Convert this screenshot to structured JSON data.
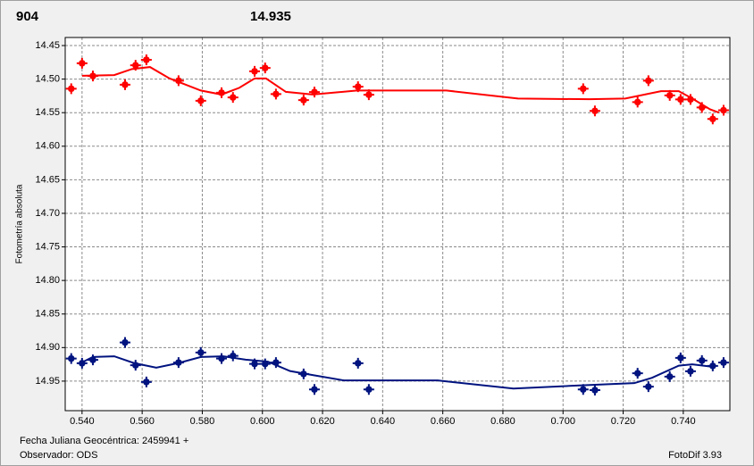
{
  "chart_data": {
    "type": "scatter",
    "y_label": "Fotometría absoluta",
    "x_label": "Fecha Juliana Geocéntrica: 2459941 +",
    "observer": "Observador: ODS",
    "software": "FotoDif 3.93",
    "xlim": [
      0.5344,
      0.7555
    ],
    "ylim": [
      14.438,
      14.994
    ],
    "y_inverted": true,
    "grid": true,
    "xticks": [
      {
        "value": 0.54,
        "label": "0.540"
      },
      {
        "value": 0.56,
        "label": "0.560"
      },
      {
        "value": 0.58,
        "label": "0.580"
      },
      {
        "value": 0.6,
        "label": "0.600"
      },
      {
        "value": 0.62,
        "label": "0.620"
      },
      {
        "value": 0.64,
        "label": "0.640"
      },
      {
        "value": 0.66,
        "label": "0.660"
      },
      {
        "value": 0.68,
        "label": "0.680"
      },
      {
        "value": 0.7,
        "label": "0.700"
      },
      {
        "value": 0.72,
        "label": "0.720"
      },
      {
        "value": 0.74,
        "label": "0.740"
      }
    ],
    "yticks": [
      14.45,
      {
        "value": 14.5,
        "label": "14.50"
      },
      14.55,
      {
        "value": 14.6,
        "label": "14.60"
      },
      14.65,
      {
        "value": 14.7,
        "label": "14.70"
      },
      14.75,
      {
        "value": 14.8,
        "label": "14.80"
      },
      14.85,
      {
        "value": 14.9,
        "label": "14.90"
      },
      14.95
    ],
    "series": [
      {
        "name": "904",
        "color": "#ff0000",
        "x": [
          0.5364,
          0.54,
          0.5436,
          0.5543,
          0.5578,
          0.5614,
          0.5721,
          0.5795,
          0.5864,
          0.5902,
          0.5974,
          0.6009,
          0.6045,
          0.6137,
          0.6173,
          0.6318,
          0.6354,
          0.7067,
          0.7106,
          0.7248,
          0.7284,
          0.7355,
          0.7391,
          0.7424,
          0.7462,
          0.7498,
          0.7534
        ],
        "values": [
          14.513,
          14.475,
          14.494,
          14.507,
          14.478,
          14.47,
          14.501,
          14.531,
          14.519,
          14.526,
          14.487,
          14.482,
          14.521,
          14.53,
          14.518,
          14.51,
          14.522,
          14.513,
          14.546,
          14.533,
          14.501,
          14.523,
          14.529,
          14.529,
          14.541,
          14.558,
          14.545
        ],
        "fit_x": [
          0.54,
          0.5507,
          0.5566,
          0.5626,
          0.5691,
          0.5795,
          0.5864,
          0.5923,
          0.5974,
          0.6012,
          0.6078,
          0.6167,
          0.6315,
          0.6612,
          0.685,
          0.7088,
          0.7207,
          0.7326,
          0.7385,
          0.743,
          0.7489,
          0.7519
        ],
        "fit_values": [
          14.495,
          14.494,
          14.485,
          14.482,
          14.499,
          14.517,
          14.523,
          14.513,
          14.499,
          14.499,
          14.519,
          14.523,
          14.517,
          14.517,
          14.529,
          14.53,
          14.529,
          14.518,
          14.518,
          14.529,
          14.545,
          14.55
        ]
      },
      {
        "name": "14.935",
        "color": "#00137f",
        "x": [
          0.5364,
          0.54,
          0.5436,
          0.5543,
          0.5578,
          0.5614,
          0.5721,
          0.5795,
          0.5864,
          0.5902,
          0.5974,
          0.6009,
          0.6045,
          0.6137,
          0.6173,
          0.6318,
          0.6354,
          0.7067,
          0.7106,
          0.7248,
          0.7284,
          0.7355,
          0.7391,
          0.7424,
          0.7462,
          0.7498,
          0.7534
        ],
        "values": [
          14.915,
          14.922,
          14.917,
          14.891,
          14.925,
          14.95,
          14.921,
          14.906,
          14.915,
          14.911,
          14.923,
          14.923,
          14.921,
          14.938,
          14.961,
          14.922,
          14.961,
          14.961,
          14.962,
          14.937,
          14.957,
          14.942,
          14.914,
          14.934,
          14.918,
          14.926,
          14.921
        ],
        "fit_x": [
          0.54,
          0.5436,
          0.5507,
          0.5572,
          0.5647,
          0.5721,
          0.5795,
          0.587,
          0.5944,
          0.6018,
          0.6092,
          0.6167,
          0.6271,
          0.6583,
          0.6835,
          0.7029,
          0.7237,
          0.7296,
          0.7385,
          0.743,
          0.7504
        ],
        "fit_values": [
          14.922,
          14.914,
          14.913,
          14.923,
          14.93,
          14.923,
          14.914,
          14.913,
          14.918,
          14.921,
          14.935,
          14.941,
          14.949,
          14.949,
          14.961,
          14.957,
          14.953,
          14.945,
          14.927,
          14.925,
          14.929
        ]
      }
    ]
  }
}
